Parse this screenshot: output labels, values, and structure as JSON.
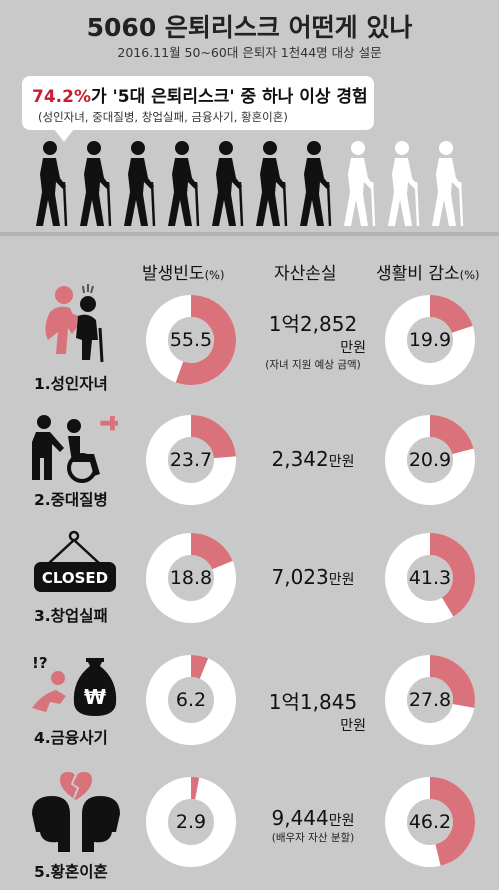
{
  "header": {
    "title": "5060 은퇴리스크 어떤게 있나",
    "subtitle": "2016.11월 50~60대 은퇴자 1천44명 대상 설문"
  },
  "callout": {
    "highlight": "74.2%",
    "main_rest": "가 '5대 은퇴리스크' 중 하나 이상 경험",
    "sub": "(성인자녀, 중대질병, 창업실패, 금융사기, 황혼이혼)"
  },
  "walkers": {
    "total": 10,
    "filled": 7,
    "filled_color": "#111111",
    "empty_color": "#ffffff"
  },
  "columns": {
    "frequency": {
      "label": "발생빈도",
      "unit": "(%)"
    },
    "asset": {
      "label": "자산손실"
    },
    "living": {
      "label": "생활비 감소",
      "unit": "(%)"
    }
  },
  "colors": {
    "accent": "#d9727a",
    "ring": "#ffffff",
    "background": "#c9c9c9"
  },
  "chart_data": {
    "type": "pie",
    "categories": [
      "1.성인자녀",
      "2.중대질병",
      "3.창업실패",
      "4.금융사기",
      "5.황혼이혼"
    ],
    "series": [
      {
        "name": "발생빈도(%)",
        "values": [
          55.5,
          23.7,
          18.8,
          6.2,
          2.9
        ]
      },
      {
        "name": "생활비 감소(%)",
        "values": [
          19.9,
          20.9,
          41.3,
          27.8,
          46.2
        ]
      }
    ],
    "asset_loss": [
      {
        "main": "1억2,852",
        "unit": "만원",
        "note": "(자녀 지원 예상 금액)"
      },
      {
        "main": "2,342",
        "unit": "만원",
        "note": ""
      },
      {
        "main": "7,023",
        "unit": "만원",
        "note": ""
      },
      {
        "main": "1억1,845",
        "unit": "만원",
        "note": ""
      },
      {
        "main": "9,444",
        "unit": "만원",
        "note": "(배우자 자산 분할)"
      }
    ]
  },
  "icons": {
    "closed_sign": "CLOSED",
    "won_symbol": "₩",
    "question_marks": "!?",
    "names": [
      "adult-child-icon",
      "illness-wheelchair-icon",
      "closed-sign-icon",
      "money-bag-icon",
      "broken-heart-icon"
    ]
  }
}
